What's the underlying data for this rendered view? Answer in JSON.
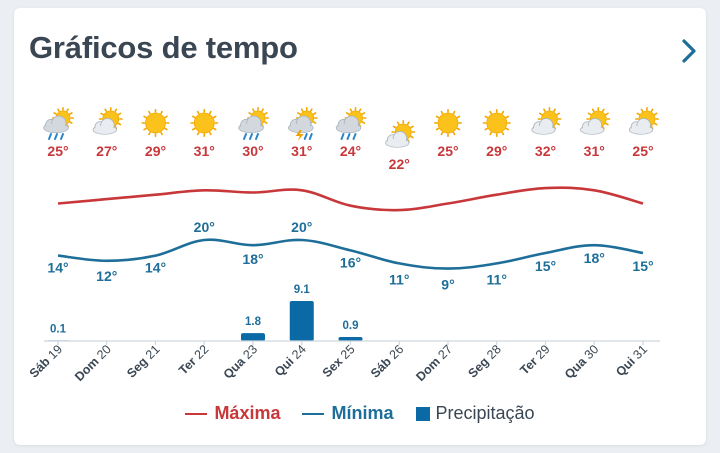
{
  "card": {
    "title": "Gráficos de tempo"
  },
  "colors": {
    "max": "#c8373a",
    "min": "#1e6e9a",
    "precip": "#0b6aa6",
    "axis": "#cfd6dd",
    "tick_text": "#3a4753"
  },
  "legend": {
    "max_label": "Máxima",
    "min_label": "Mínima",
    "precip_label": "Precipitação"
  },
  "chart_data": {
    "type": "line",
    "categories": [
      "Sáb 19",
      "Dom 20",
      "Seg 21",
      "Ter 22",
      "Qua 23",
      "Qui 24",
      "Sex 25",
      "Sáb 26",
      "Dom 27",
      "Seg 28",
      "Ter 29",
      "Qua 30",
      "Qui 31"
    ],
    "icons": [
      "cloud-sun-rain-icon",
      "cloud-sun-icon",
      "sun-icon",
      "sun-icon",
      "cloud-sun-rain-icon",
      "thunderstorm-icon",
      "cloud-sun-rain-icon",
      "cloud-sun-icon",
      "sun-icon",
      "sun-icon",
      "cloud-sun-icon",
      "cloud-sun-icon",
      "cloud-sun-icon"
    ],
    "max_labels": [
      "25°",
      "27°",
      "29°",
      "31°",
      "30°",
      "31°",
      "24°",
      "22°",
      "25°",
      "29°",
      "32°",
      "31°",
      "25°"
    ],
    "min_labels": [
      "14°",
      "12°",
      "14°",
      "20°",
      "18°",
      "20°",
      "16°",
      "11°",
      "9°",
      "11°",
      "15°",
      "18°",
      "15°"
    ],
    "precip_labels": [
      "0.1",
      "",
      "",
      "",
      "1.8",
      "9.1",
      "0.9",
      "",
      "",
      "",
      "",
      "",
      ""
    ],
    "series": [
      {
        "name": "Máxima",
        "values": [
          25,
          27,
          29,
          31,
          30,
          31,
          24,
          22,
          25,
          29,
          32,
          31,
          25
        ]
      },
      {
        "name": "Mínima",
        "values": [
          14,
          12,
          14,
          20,
          18,
          20,
          16,
          11,
          9,
          11,
          15,
          18,
          15
        ]
      },
      {
        "name": "Precipitação",
        "values": [
          0.1,
          0,
          0,
          0,
          1.8,
          9.1,
          0.9,
          0,
          0,
          0,
          0,
          0,
          0
        ]
      }
    ]
  }
}
